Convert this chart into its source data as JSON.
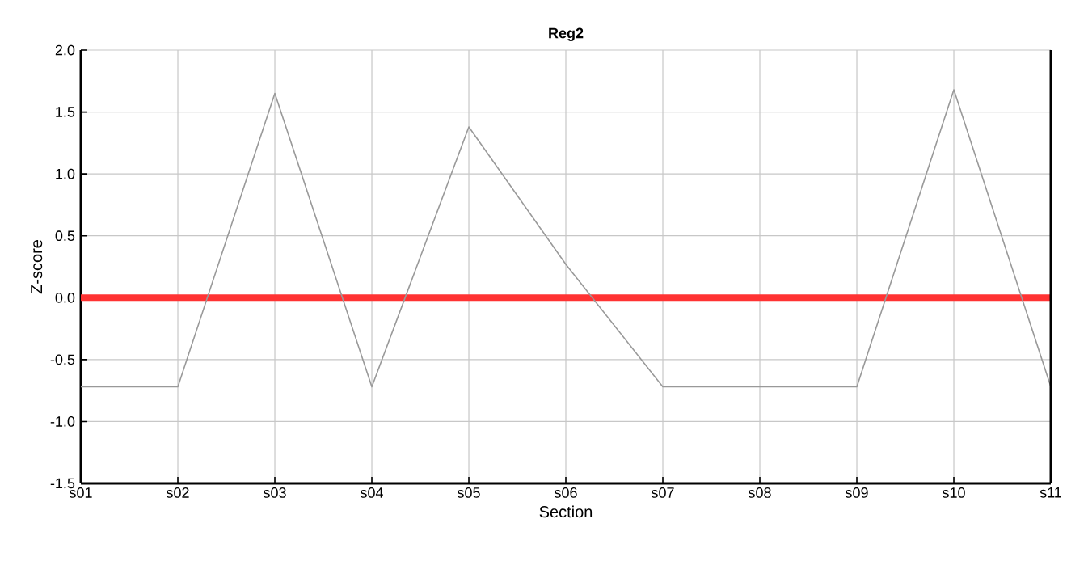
{
  "chart_data": {
    "type": "line",
    "title": "Reg2",
    "xlabel": "Section",
    "ylabel": "Z-score",
    "categories": [
      "s01",
      "s02",
      "s03",
      "s04",
      "s05",
      "s06",
      "s07",
      "s08",
      "s09",
      "s10",
      "s11"
    ],
    "series": [
      {
        "color": "#999999",
        "values": [
          -0.72,
          -0.72,
          1.65,
          -0.72,
          1.38,
          0.27,
          -0.72,
          -0.72,
          -0.72,
          1.68,
          -0.72
        ]
      }
    ],
    "ylim": [
      -1.5,
      2.0
    ],
    "yticks": [
      {
        "value": -1.5,
        "label": "-1.5"
      },
      {
        "value": -1.0,
        "label": "-1.0"
      },
      {
        "value": -0.5,
        "label": "-0.5"
      },
      {
        "value": 0.0,
        "label": "0.0"
      },
      {
        "value": 0.5,
        "label": "0.5"
      },
      {
        "value": 1.0,
        "label": "1.0"
      },
      {
        "value": 1.5,
        "label": "1.5"
      },
      {
        "value": 2.0,
        "label": "2.0"
      }
    ],
    "ref_lines": [
      {
        "axis": "y",
        "value": 0,
        "color": "#ff3333"
      }
    ],
    "grid": true,
    "marker": "none",
    "line_style": "solid"
  }
}
